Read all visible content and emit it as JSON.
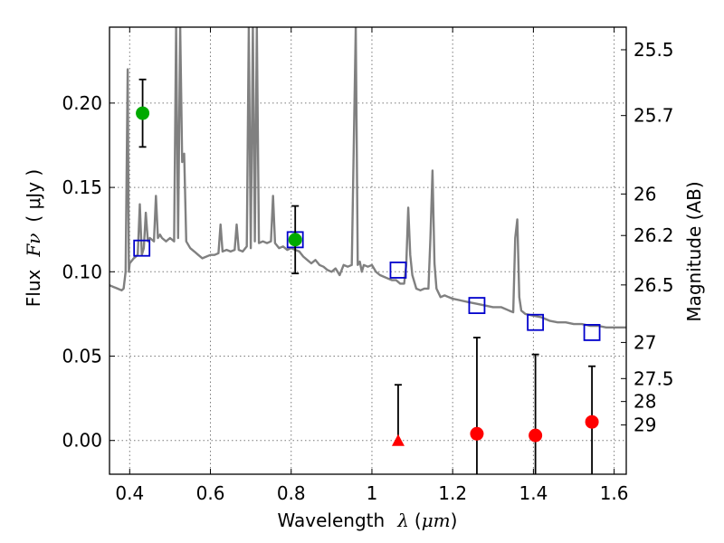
{
  "chart_data": {
    "type": "scatter",
    "title": "",
    "xlabel": "Wavelength",
    "xlabel_symbol": "λ",
    "xlabel_unit_open": "(",
    "xlabel_unit": "μm",
    "xlabel_unit_close": ")",
    "ylabel": "Flux",
    "ylabel_symbol": "Fν",
    "ylabel_unit": "( μJy )",
    "y2label": "Magnitude (AB)",
    "xlim": [
      0.35,
      1.63
    ],
    "ylim": [
      -0.02,
      0.245
    ],
    "grid": true,
    "x_ticks": [
      0.4,
      0.6,
      0.8,
      1.0,
      1.2,
      1.4,
      1.6
    ],
    "x_tick_labels": [
      "0.4",
      "0.6",
      "0.8",
      "1",
      "1.2",
      "1.4",
      "1.6"
    ],
    "y_ticks": [
      0.0,
      0.05,
      0.1,
      0.15,
      0.2
    ],
    "y_tick_labels": [
      "0.00",
      "0.05",
      "0.10",
      "0.15",
      "0.20"
    ],
    "y2_ticks": [
      {
        "label": "25.5",
        "flux": 0.2316
      },
      {
        "label": "25.7",
        "flux": 0.1926
      },
      {
        "label": "26",
        "flux": 0.1461
      },
      {
        "label": "26.2",
        "flux": 0.1215
      },
      {
        "label": "26.5",
        "flux": 0.0922
      },
      {
        "label": "27",
        "flux": 0.0581
      },
      {
        "label": "27.5",
        "flux": 0.0367
      },
      {
        "label": "28",
        "flux": 0.0231
      },
      {
        "label": "29",
        "flux": 0.0092
      }
    ],
    "series": [
      {
        "marker": "line",
        "color": "#808080",
        "points": [
          [
            0.35,
            0.092
          ],
          [
            0.36,
            0.091
          ],
          [
            0.37,
            0.09
          ],
          [
            0.38,
            0.089
          ],
          [
            0.385,
            0.09
          ],
          [
            0.39,
            0.1
          ],
          [
            0.395,
            0.22
          ],
          [
            0.398,
            0.1
          ],
          [
            0.4,
            0.105
          ],
          [
            0.41,
            0.108
          ],
          [
            0.42,
            0.11
          ],
          [
            0.425,
            0.14
          ],
          [
            0.43,
            0.11
          ],
          [
            0.435,
            0.114
          ],
          [
            0.44,
            0.135
          ],
          [
            0.445,
            0.118
          ],
          [
            0.45,
            0.12
          ],
          [
            0.46,
            0.118
          ],
          [
            0.465,
            0.145
          ],
          [
            0.47,
            0.12
          ],
          [
            0.475,
            0.122
          ],
          [
            0.48,
            0.12
          ],
          [
            0.49,
            0.118
          ],
          [
            0.5,
            0.12
          ],
          [
            0.51,
            0.118
          ],
          [
            0.515,
            0.245
          ],
          [
            0.52,
            0.12
          ],
          [
            0.525,
            0.245
          ],
          [
            0.53,
            0.165
          ],
          [
            0.535,
            0.17
          ],
          [
            0.54,
            0.118
          ],
          [
            0.55,
            0.114
          ],
          [
            0.56,
            0.112
          ],
          [
            0.57,
            0.11
          ],
          [
            0.58,
            0.108
          ],
          [
            0.6,
            0.11
          ],
          [
            0.61,
            0.11
          ],
          [
            0.62,
            0.111
          ],
          [
            0.625,
            0.128
          ],
          [
            0.63,
            0.112
          ],
          [
            0.64,
            0.113
          ],
          [
            0.65,
            0.112
          ],
          [
            0.66,
            0.113
          ],
          [
            0.665,
            0.128
          ],
          [
            0.67,
            0.113
          ],
          [
            0.68,
            0.112
          ],
          [
            0.69,
            0.115
          ],
          [
            0.695,
            0.245
          ],
          [
            0.7,
            0.114
          ],
          [
            0.705,
            0.245
          ],
          [
            0.71,
            0.118
          ],
          [
            0.715,
            0.245
          ],
          [
            0.72,
            0.117
          ],
          [
            0.73,
            0.118
          ],
          [
            0.74,
            0.117
          ],
          [
            0.75,
            0.118
          ],
          [
            0.755,
            0.145
          ],
          [
            0.76,
            0.117
          ],
          [
            0.77,
            0.114
          ],
          [
            0.78,
            0.115
          ],
          [
            0.79,
            0.113
          ],
          [
            0.8,
            0.114
          ],
          [
            0.81,
            0.113
          ],
          [
            0.82,
            0.112
          ],
          [
            0.83,
            0.109
          ],
          [
            0.84,
            0.107
          ],
          [
            0.85,
            0.105
          ],
          [
            0.86,
            0.107
          ],
          [
            0.87,
            0.104
          ],
          [
            0.88,
            0.103
          ],
          [
            0.89,
            0.101
          ],
          [
            0.9,
            0.1
          ],
          [
            0.91,
            0.102
          ],
          [
            0.92,
            0.098
          ],
          [
            0.93,
            0.104
          ],
          [
            0.94,
            0.103
          ],
          [
            0.95,
            0.104
          ],
          [
            0.96,
            0.245
          ],
          [
            0.965,
            0.104
          ],
          [
            0.97,
            0.106
          ],
          [
            0.975,
            0.1
          ],
          [
            0.98,
            0.104
          ],
          [
            0.99,
            0.103
          ],
          [
            1.0,
            0.104
          ],
          [
            1.01,
            0.1
          ],
          [
            1.02,
            0.098
          ],
          [
            1.03,
            0.097
          ],
          [
            1.04,
            0.096
          ],
          [
            1.05,
            0.095
          ],
          [
            1.06,
            0.095
          ],
          [
            1.07,
            0.093
          ],
          [
            1.08,
            0.093
          ],
          [
            1.085,
            0.104
          ],
          [
            1.09,
            0.138
          ],
          [
            1.095,
            0.11
          ],
          [
            1.1,
            0.098
          ],
          [
            1.11,
            0.09
          ],
          [
            1.12,
            0.089
          ],
          [
            1.13,
            0.09
          ],
          [
            1.14,
            0.09
          ],
          [
            1.145,
            0.12
          ],
          [
            1.15,
            0.16
          ],
          [
            1.155,
            0.105
          ],
          [
            1.16,
            0.09
          ],
          [
            1.17,
            0.085
          ],
          [
            1.18,
            0.086
          ],
          [
            1.19,
            0.085
          ],
          [
            1.2,
            0.084
          ],
          [
            1.22,
            0.083
          ],
          [
            1.24,
            0.082
          ],
          [
            1.26,
            0.081
          ],
          [
            1.28,
            0.08
          ],
          [
            1.3,
            0.079
          ],
          [
            1.32,
            0.079
          ],
          [
            1.34,
            0.077
          ],
          [
            1.35,
            0.076
          ],
          [
            1.355,
            0.12
          ],
          [
            1.36,
            0.131
          ],
          [
            1.365,
            0.085
          ],
          [
            1.37,
            0.077
          ],
          [
            1.38,
            0.075
          ],
          [
            1.4,
            0.074
          ],
          [
            1.42,
            0.073
          ],
          [
            1.44,
            0.071
          ],
          [
            1.46,
            0.07
          ],
          [
            1.48,
            0.07
          ],
          [
            1.5,
            0.069
          ],
          [
            1.52,
            0.069
          ],
          [
            1.54,
            0.068
          ],
          [
            1.56,
            0.068
          ],
          [
            1.58,
            0.067
          ],
          [
            1.6,
            0.067
          ],
          [
            1.63,
            0.067
          ]
        ]
      },
      {
        "marker": "square-open",
        "color": "#0000cc",
        "points": [
          [
            0.43,
            0.114
          ],
          [
            0.81,
            0.119
          ],
          [
            1.065,
            0.101
          ],
          [
            1.26,
            0.08
          ],
          [
            1.405,
            0.07
          ],
          [
            1.545,
            0.064
          ]
        ]
      },
      {
        "marker": "circle",
        "color": "#00aa00",
        "points": [
          [
            0.432,
            0.194
          ],
          [
            0.81,
            0.119
          ]
        ],
        "errors": [
          0.02,
          0.02
        ]
      },
      {
        "marker": "circle",
        "color": "#ff0000",
        "points": [
          [
            1.26,
            0.004
          ],
          [
            1.405,
            0.003
          ],
          [
            1.545,
            0.011
          ]
        ],
        "errors": [
          0.057,
          0.048,
          0.033
        ]
      },
      {
        "marker": "triangle",
        "color": "#ff0000",
        "points": [
          [
            1.065,
            0.0
          ]
        ],
        "errors": [
          0.033
        ],
        "error_style": "upper-only"
      }
    ]
  }
}
